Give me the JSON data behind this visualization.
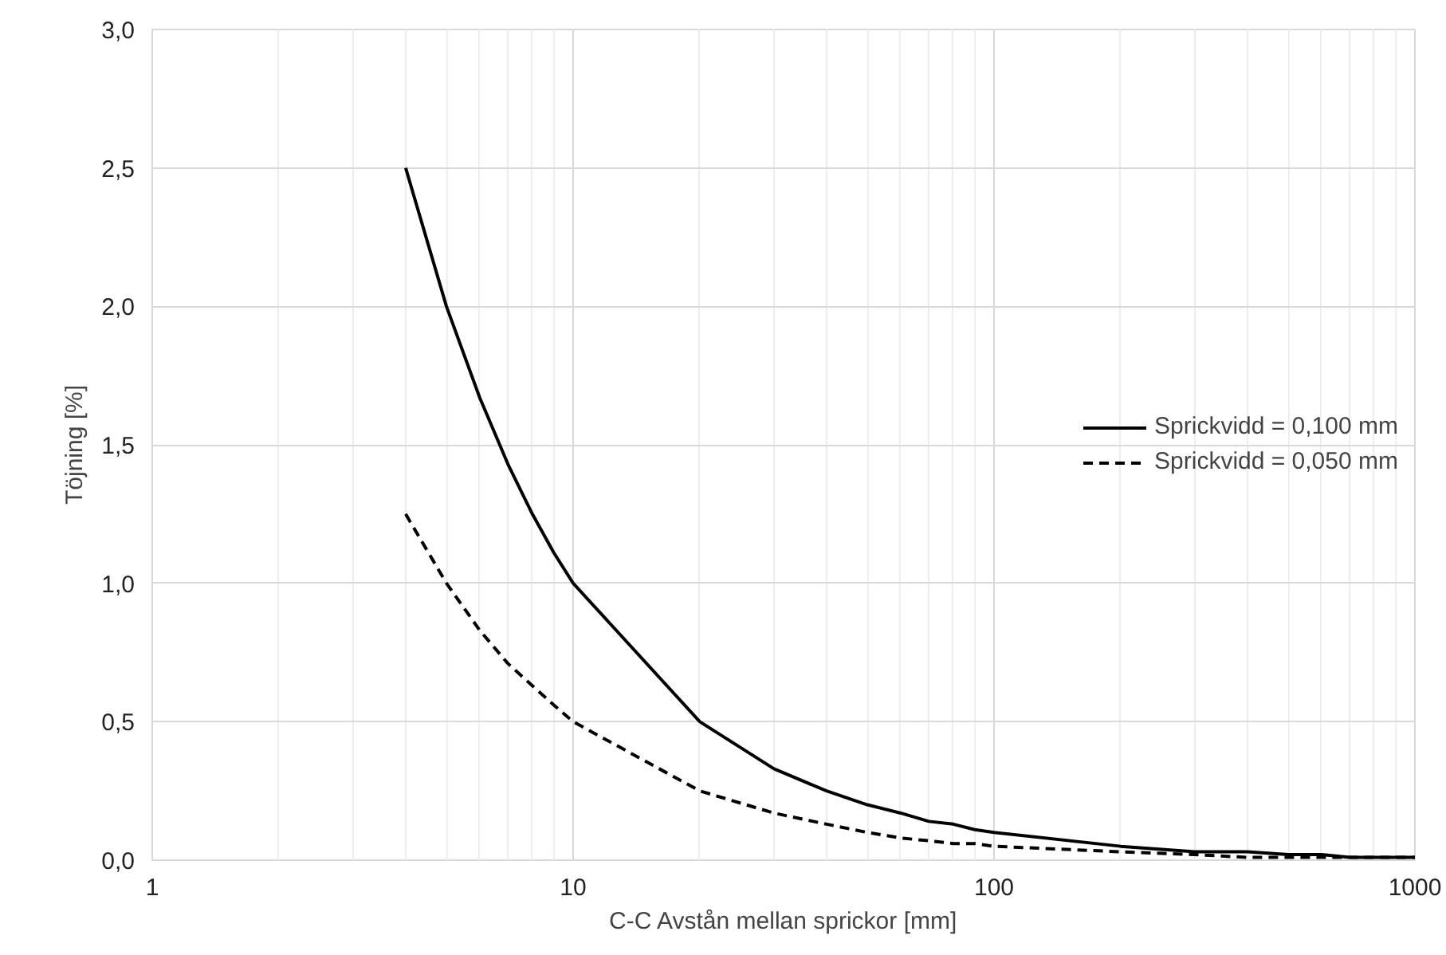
{
  "chart_data": {
    "type": "line",
    "xlabel": "C-C Avstån mellan sprickor [mm]",
    "ylabel": "Töjning [%]",
    "x": [
      4,
      5,
      6,
      7,
      8,
      9,
      10,
      20,
      30,
      40,
      50,
      60,
      70,
      80,
      90,
      100,
      200,
      300,
      400,
      500,
      600,
      700,
      800,
      900,
      1000
    ],
    "series": [
      {
        "name": "Sprickvidd = 0,100 mm",
        "color": "#000000",
        "line_style": "solid",
        "values": [
          2.5,
          2.0,
          1.67,
          1.43,
          1.25,
          1.11,
          1.0,
          0.5,
          0.33,
          0.25,
          0.2,
          0.17,
          0.14,
          0.13,
          0.11,
          0.1,
          0.05,
          0.03,
          0.03,
          0.02,
          0.02,
          0.01,
          0.01,
          0.01,
          0.01
        ]
      },
      {
        "name": "Sprickvidd = 0,050 mm",
        "color": "#000000",
        "line_style": "dashed",
        "values": [
          1.25,
          1.0,
          0.83,
          0.71,
          0.63,
          0.56,
          0.5,
          0.25,
          0.17,
          0.13,
          0.1,
          0.08,
          0.07,
          0.06,
          0.06,
          0.05,
          0.03,
          0.02,
          0.01,
          0.01,
          0.01,
          0.01,
          0.01,
          0.01,
          0.01
        ]
      }
    ],
    "log": "x",
    "xlim": [
      1,
      1000
    ],
    "ylim": [
      0,
      3
    ],
    "xticks": [
      1,
      10,
      100,
      1000
    ],
    "yticks": [
      {
        "value": 0,
        "label": "0,0"
      },
      {
        "value": 0.5,
        "label": "0,5"
      },
      {
        "value": 1,
        "label": "1,0"
      },
      {
        "value": 1.5,
        "label": "1,5"
      },
      {
        "value": 2,
        "label": "2,0"
      },
      {
        "value": 2.5,
        "label": "2,5"
      },
      {
        "value": 3,
        "label": "3,0"
      }
    ],
    "grid": true,
    "legend": "right",
    "marker": "none"
  }
}
